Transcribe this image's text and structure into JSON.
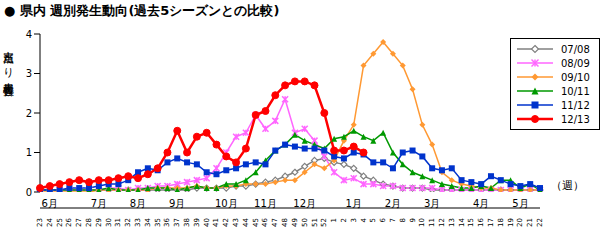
{
  "chart_data": {
    "type": "line",
    "title": "● 県内 週別発生動向(過去5シーズンとの比較)",
    "y_label": "定点当たり患者報告数",
    "x_label": "（週）",
    "categories": [
      "23",
      "24",
      "25",
      "26",
      "27",
      "28",
      "29",
      "30",
      "31",
      "32",
      "33",
      "34",
      "35",
      "36",
      "37",
      "38",
      "39",
      "40",
      "41",
      "42",
      "43",
      "44",
      "45",
      "46",
      "47",
      "48",
      "49",
      "50",
      "51",
      "52",
      "1",
      "2",
      "3",
      "4",
      "5",
      "6",
      "7",
      "8",
      "9",
      "10",
      "11",
      "12",
      "13",
      "14",
      "15",
      "16",
      "17",
      "18",
      "19",
      "20",
      "21",
      "22"
    ],
    "months": [
      {
        "label": "6月",
        "start": 0,
        "weeks": 4
      },
      {
        "label": "7月",
        "start": 4,
        "weeks": 5
      },
      {
        "label": "8月",
        "start": 9,
        "weeks": 4
      },
      {
        "label": "9月",
        "start": 13,
        "weeks": 4
      },
      {
        "label": "10月",
        "start": 17,
        "weeks": 5
      },
      {
        "label": "11月",
        "start": 22,
        "weeks": 4
      },
      {
        "label": "12月",
        "start": 26,
        "weeks": 4
      },
      {
        "label": "1月",
        "start": 30,
        "weeks": 5
      },
      {
        "label": "2月",
        "start": 35,
        "weeks": 4
      },
      {
        "label": "3月",
        "start": 39,
        "weeks": 4
      },
      {
        "label": "4月",
        "start": 43,
        "weeks": 5
      },
      {
        "label": "5月",
        "start": 48,
        "weeks": 4
      }
    ],
    "ylim": [
      0,
      4
    ],
    "yticks": [
      0,
      1,
      2,
      3,
      4
    ],
    "grid": false,
    "legend": "upper right",
    "series": [
      {
        "name": "07/08",
        "color": "#808080",
        "marker": "open_diamond",
        "values": [
          0.05,
          0.05,
          0.05,
          0.05,
          0.05,
          0.05,
          0.05,
          0.05,
          0.05,
          0.05,
          0.05,
          0.05,
          0.05,
          0.05,
          0.05,
          0.05,
          0.1,
          0.1,
          0.1,
          0.1,
          0.15,
          0.15,
          0.2,
          0.25,
          0.3,
          0.4,
          0.5,
          0.65,
          0.8,
          0.85,
          0.75,
          0.7,
          0.6,
          0.4,
          0.3,
          0.2,
          0.15,
          0.1,
          0.1,
          0.1,
          0.05,
          0.05,
          0.05,
          0.05,
          0.05,
          0.05,
          0.05,
          0.05,
          0.05,
          0.05,
          0.05,
          0.05
        ]
      },
      {
        "name": "08/09",
        "color": "#ff66ff",
        "marker": "cross",
        "values": [
          0.05,
          0.05,
          0.05,
          0.05,
          0.05,
          0.05,
          0.05,
          0.1,
          0.1,
          0.05,
          0.1,
          0.1,
          0.15,
          0.15,
          0.2,
          0.25,
          0.3,
          0.35,
          0.6,
          1.0,
          1.4,
          1.5,
          1.95,
          1.6,
          1.8,
          2.35,
          1.5,
          1.6,
          1.3,
          0.9,
          0.5,
          0.3,
          0.35,
          0.2,
          0.2,
          0.15,
          0.15,
          0.1,
          0.1,
          0.1,
          0.1,
          0.05,
          0.05,
          0.05,
          0.05,
          0.05,
          0.05,
          0.05,
          0.05,
          0.05,
          0.05,
          0.05
        ]
      },
      {
        "name": "09/10",
        "color": "#ff9933",
        "marker": "diamond",
        "values": [
          0.0,
          0.0,
          0.0,
          0.0,
          0.0,
          0.0,
          0.05,
          0.05,
          0.05,
          0.05,
          0.05,
          0.05,
          0.1,
          0.1,
          0.1,
          0.1,
          0.15,
          0.1,
          0.1,
          0.15,
          0.15,
          0.2,
          0.2,
          0.2,
          0.25,
          0.3,
          0.3,
          0.5,
          0.7,
          0.6,
          0.8,
          1.3,
          1.7,
          3.2,
          3.5,
          3.8,
          3.5,
          3.2,
          2.6,
          1.7,
          1.2,
          0.5,
          0.3,
          0.2,
          0.15,
          0.1,
          0.1,
          0.05,
          0.05,
          0.05,
          0.05,
          0.05
        ]
      },
      {
        "name": "10/11",
        "color": "#009900",
        "marker": "triangle",
        "values": [
          0.05,
          0.05,
          0.05,
          0.05,
          0.05,
          0.05,
          0.05,
          0.1,
          0.05,
          0.05,
          0.05,
          0.1,
          0.1,
          0.1,
          0.05,
          0.1,
          0.15,
          0.1,
          0.1,
          0.2,
          0.2,
          0.3,
          0.5,
          0.8,
          1.05,
          1.2,
          1.45,
          1.3,
          1.2,
          1.1,
          1.35,
          1.4,
          1.55,
          1.4,
          1.3,
          1.5,
          1.0,
          0.7,
          0.5,
          0.4,
          0.3,
          0.2,
          0.15,
          0.1,
          0.1,
          0.15,
          0.1,
          0.3,
          0.3,
          0.1,
          0.2,
          0.05
        ]
      },
      {
        "name": "11/12",
        "color": "#0033cc",
        "marker": "square",
        "values": [
          0.05,
          0.05,
          0.05,
          0.1,
          0.1,
          0.1,
          0.15,
          0.2,
          0.2,
          0.3,
          0.5,
          0.6,
          0.55,
          0.75,
          0.85,
          0.75,
          0.7,
          0.5,
          0.45,
          0.55,
          0.6,
          0.7,
          0.75,
          0.7,
          1.05,
          1.2,
          1.15,
          1.1,
          1.1,
          1.05,
          0.9,
          0.85,
          1.0,
          0.95,
          0.75,
          0.75,
          0.6,
          1.0,
          1.05,
          0.9,
          0.6,
          0.55,
          0.6,
          0.3,
          0.25,
          0.2,
          0.4,
          0.3,
          0.2,
          0.15,
          0.2,
          0.1
        ]
      },
      {
        "name": "12/13",
        "color": "#ff0000",
        "marker": "circle",
        "values": [
          0.1,
          0.15,
          0.2,
          0.25,
          0.3,
          0.25,
          0.3,
          0.3,
          0.35,
          0.4,
          0.35,
          0.45,
          0.6,
          1.0,
          1.55,
          1.0,
          1.4,
          1.5,
          1.2,
          0.9,
          0.75,
          1.1,
          1.95,
          2.05,
          2.45,
          2.7,
          2.8,
          2.8,
          2.7,
          2.0,
          1.05,
          1.05,
          1.15,
          1.0,
          null,
          null,
          null,
          null,
          null,
          null,
          null,
          null,
          null,
          null,
          null,
          null,
          null,
          null,
          null,
          null,
          null,
          null
        ]
      }
    ]
  }
}
